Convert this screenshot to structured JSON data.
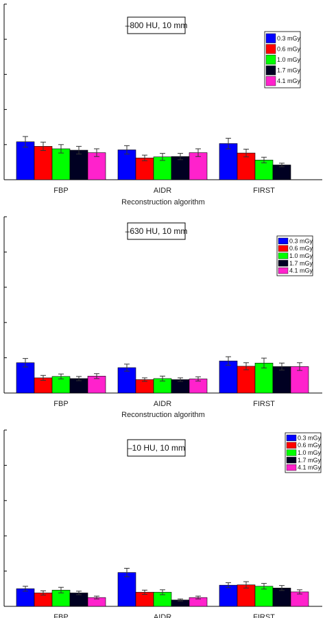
{
  "chart_data": [
    {
      "type": "bar",
      "title": "–800 HU, 10 mm",
      "xlabel": "Reconstruction algorithm",
      "ylabel": "",
      "categories": [
        "FBP",
        "AIDR",
        "FIRST"
      ],
      "ylim": [
        0,
        5
      ],
      "legend_position": "top-right",
      "series": [
        {
          "name": "0.3 mGy",
          "color": "#0000ff",
          "values": [
            1.08,
            0.85,
            1.03
          ],
          "errors": [
            0.15,
            0.12,
            0.15
          ]
        },
        {
          "name": "0.6 mGy",
          "color": "#ff0000",
          "values": [
            0.95,
            0.62,
            0.76
          ],
          "errors": [
            0.12,
            0.08,
            0.11
          ]
        },
        {
          "name": "1.0 mGy",
          "color": "#00ff00",
          "values": [
            0.88,
            0.65,
            0.56
          ],
          "errors": [
            0.12,
            0.1,
            0.08
          ]
        },
        {
          "name": "1.7 mGy",
          "color": "#000022",
          "values": [
            0.84,
            0.66,
            0.42
          ],
          "errors": [
            0.11,
            0.09,
            0.05
          ]
        },
        {
          "name": "4.1 mGy",
          "color": "#ff22cc",
          "values": [
            0.77,
            0.77,
            null
          ],
          "errors": [
            0.11,
            0.11,
            null
          ]
        }
      ]
    },
    {
      "type": "bar",
      "title": "–630 HU, 10 mm",
      "xlabel": "Reconstruction algorithm",
      "ylabel": "",
      "categories": [
        "FBP",
        "AIDR",
        "FIRST"
      ],
      "ylim": [
        0,
        5
      ],
      "legend_position": "top-right",
      "series": [
        {
          "name": "0.3 mGy",
          "color": "#0000ff",
          "values": [
            0.86,
            0.72,
            0.91
          ],
          "errors": [
            0.12,
            0.1,
            0.12
          ]
        },
        {
          "name": "0.6 mGy",
          "color": "#ff0000",
          "values": [
            0.43,
            0.38,
            0.76
          ],
          "errors": [
            0.07,
            0.05,
            0.1
          ]
        },
        {
          "name": "1.0 mGy",
          "color": "#00ff00",
          "values": [
            0.47,
            0.41,
            0.85
          ],
          "errors": [
            0.07,
            0.07,
            0.14
          ]
        },
        {
          "name": "1.7 mGy",
          "color": "#000022",
          "values": [
            0.41,
            0.38,
            0.75
          ],
          "errors": [
            0.06,
            0.05,
            0.1
          ]
        },
        {
          "name": "4.1 mGy",
          "color": "#ff22cc",
          "values": [
            0.48,
            0.4,
            0.75
          ],
          "errors": [
            0.07,
            0.06,
            0.11
          ]
        }
      ]
    },
    {
      "type": "bar",
      "title": "–10 HU, 10 mm",
      "xlabel": "",
      "ylabel": "",
      "categories": [
        "FBP",
        "AIDR",
        "FIRST"
      ],
      "ylim": [
        0,
        5
      ],
      "legend_position": "top-right",
      "series": [
        {
          "name": "0.3 mGy",
          "color": "#0000ff",
          "values": [
            0.5,
            0.96,
            0.6
          ],
          "errors": [
            0.07,
            0.12,
            0.07
          ]
        },
        {
          "name": "0.6 mGy",
          "color": "#ff0000",
          "values": [
            0.38,
            0.4,
            0.61
          ],
          "errors": [
            0.06,
            0.06,
            0.09
          ]
        },
        {
          "name": "1.0 mGy",
          "color": "#00ff00",
          "values": [
            0.46,
            0.4,
            0.57
          ],
          "errors": [
            0.08,
            0.07,
            0.08
          ]
        },
        {
          "name": "1.7 mGy",
          "color": "#000022",
          "values": [
            0.38,
            0.18,
            0.52
          ],
          "errors": [
            0.05,
            0.03,
            0.07
          ]
        },
        {
          "name": "4.1 mGy",
          "color": "#ff22cc",
          "values": [
            0.25,
            0.25,
            0.41
          ],
          "errors": [
            0.04,
            0.04,
            0.06
          ]
        }
      ]
    }
  ]
}
